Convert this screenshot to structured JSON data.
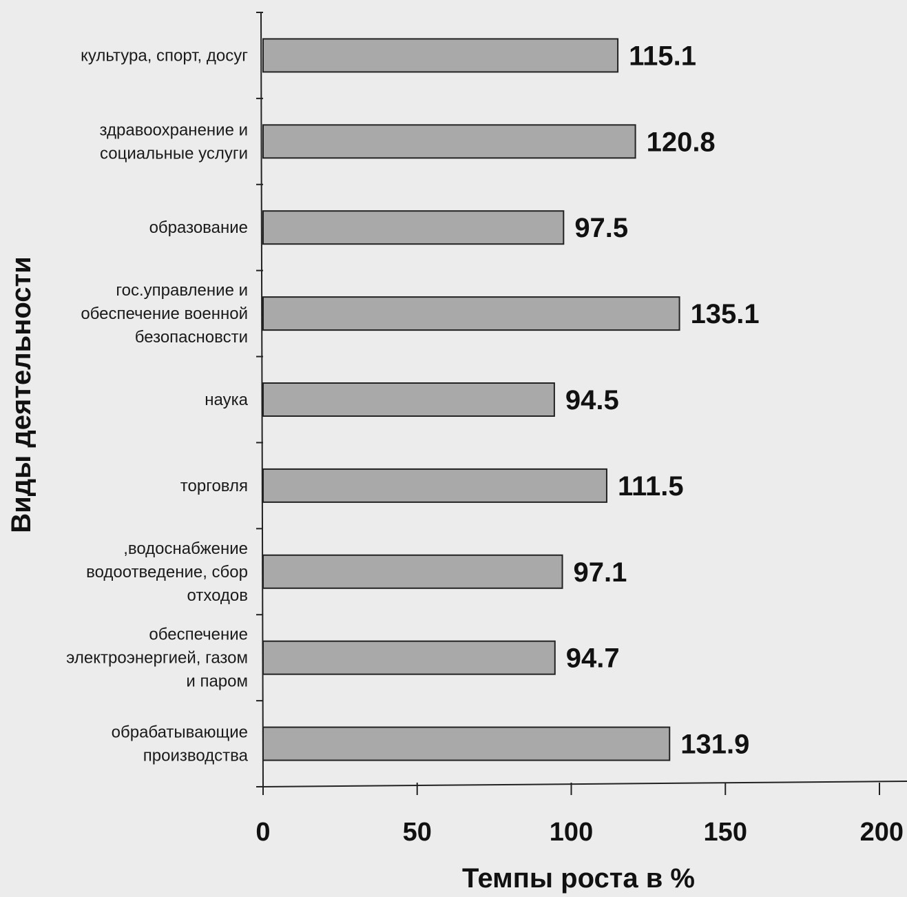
{
  "chart_data": {
    "type": "bar",
    "orientation": "horizontal",
    "categories": [
      [
        "культура, спорт, досуг"
      ],
      [
        "здравоохранение и",
        "социальные услуги"
      ],
      [
        "образование"
      ],
      [
        "гос.управление и",
        "обеспечение военной",
        "безопасновсти"
      ],
      [
        "наука"
      ],
      [
        "торговля"
      ],
      [
        ",водоснабжение",
        "водоотведение, сбор",
        "отходов"
      ],
      [
        "обеспечение",
        "электроэнергией, газом",
        "и паром"
      ],
      [
        "обрабатывающие",
        "производства"
      ]
    ],
    "values": [
      115.1,
      120.8,
      97.5,
      135.1,
      94.5,
      111.5,
      97.1,
      94.7,
      131.9
    ],
    "value_labels": [
      "115.1",
      "120.8",
      "97.5",
      "135.1",
      "94.5",
      "111.5",
      "97.1",
      "94.7",
      "131.9"
    ],
    "xlabel": "Темпы роста в %",
    "ylabel": "Виды деятельности",
    "xlim": [
      0,
      200
    ],
    "xticks": [
      "0",
      "50",
      "100",
      "150",
      "200"
    ],
    "grid": false,
    "colors": {
      "bar": "#a9a9a9",
      "background": "#ececec"
    }
  }
}
